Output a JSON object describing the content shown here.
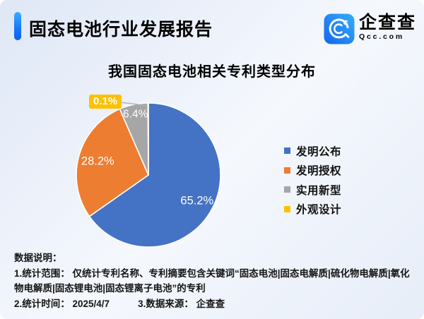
{
  "header": {
    "title": "固态电池行业发展报告",
    "logo": {
      "name": "企查查",
      "domain": "Qcc.com"
    }
  },
  "chart_data": {
    "type": "pie",
    "title": "我国固态电池相关专利类型分布",
    "direction": "clockwise",
    "start_angle": "12-oclock",
    "legend_position": "right",
    "series": [
      {
        "name": "发明公布",
        "value": 65.2,
        "label": "65.2%",
        "color": "#4472c4"
      },
      {
        "name": "发明授权",
        "value": 28.2,
        "label": "28.2%",
        "color": "#ed7d31"
      },
      {
        "name": "实用新型",
        "value": 6.4,
        "label": "6.4%",
        "color": "#a6a6a6"
      },
      {
        "name": "外观设计",
        "value": 0.1,
        "label": "0.1%",
        "color": "#ffc000"
      }
    ]
  },
  "footer": {
    "heading": "数据说明：",
    "line1": "1.统计范围： 仅统计专利名称、专利摘要包含关键词“固态电池|固态电解质|硫化物电解质|氧化物电解质|固态锂电池|固态锂离子电池”的专利",
    "line2_left": "2.统计时间： 2025/4/7",
    "line2_right": "3.数据来源： 企查查"
  },
  "colors": {
    "accent_blue": "#1a79f7",
    "callout_bg": "#ffc000",
    "background_tint": "#ecf1fa"
  }
}
